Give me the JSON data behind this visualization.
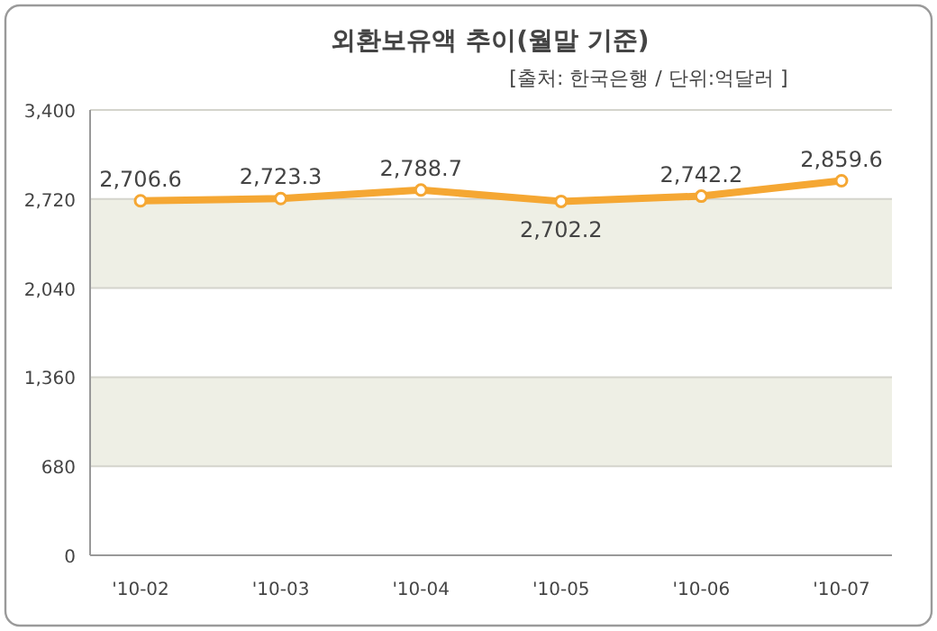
{
  "chart_data": {
    "type": "line",
    "title": "외환보유액 추이(월말 기준)",
    "subtitle": "[출처: 한국은행 / 단위:억달러 ]",
    "categories": [
      "'10-02",
      "'10-03",
      "'10-04",
      "'10-05",
      "'10-06",
      "'10-07"
    ],
    "series": [
      {
        "color": "#f5a733",
        "values": [
          2706.6,
          2723.3,
          2788.7,
          2702.2,
          2742.2,
          2859.6
        ],
        "value_labels": [
          "2,706.6",
          "2,723.3",
          "2,788.7",
          "2,702.2",
          "2,742.2",
          "2,859.6"
        ]
      }
    ],
    "ylim": [
      0,
      3400
    ],
    "yticks": [
      {
        "value": 0,
        "label": "0"
      },
      {
        "value": 680,
        "label": "680"
      },
      {
        "value": 1360,
        "label": "1,360"
      },
      {
        "value": 2040,
        "label": "2,040"
      },
      {
        "value": 2720,
        "label": "2,720"
      },
      {
        "value": 3400,
        "label": "3,400"
      }
    ],
    "grid": "y",
    "marker": "circle"
  }
}
